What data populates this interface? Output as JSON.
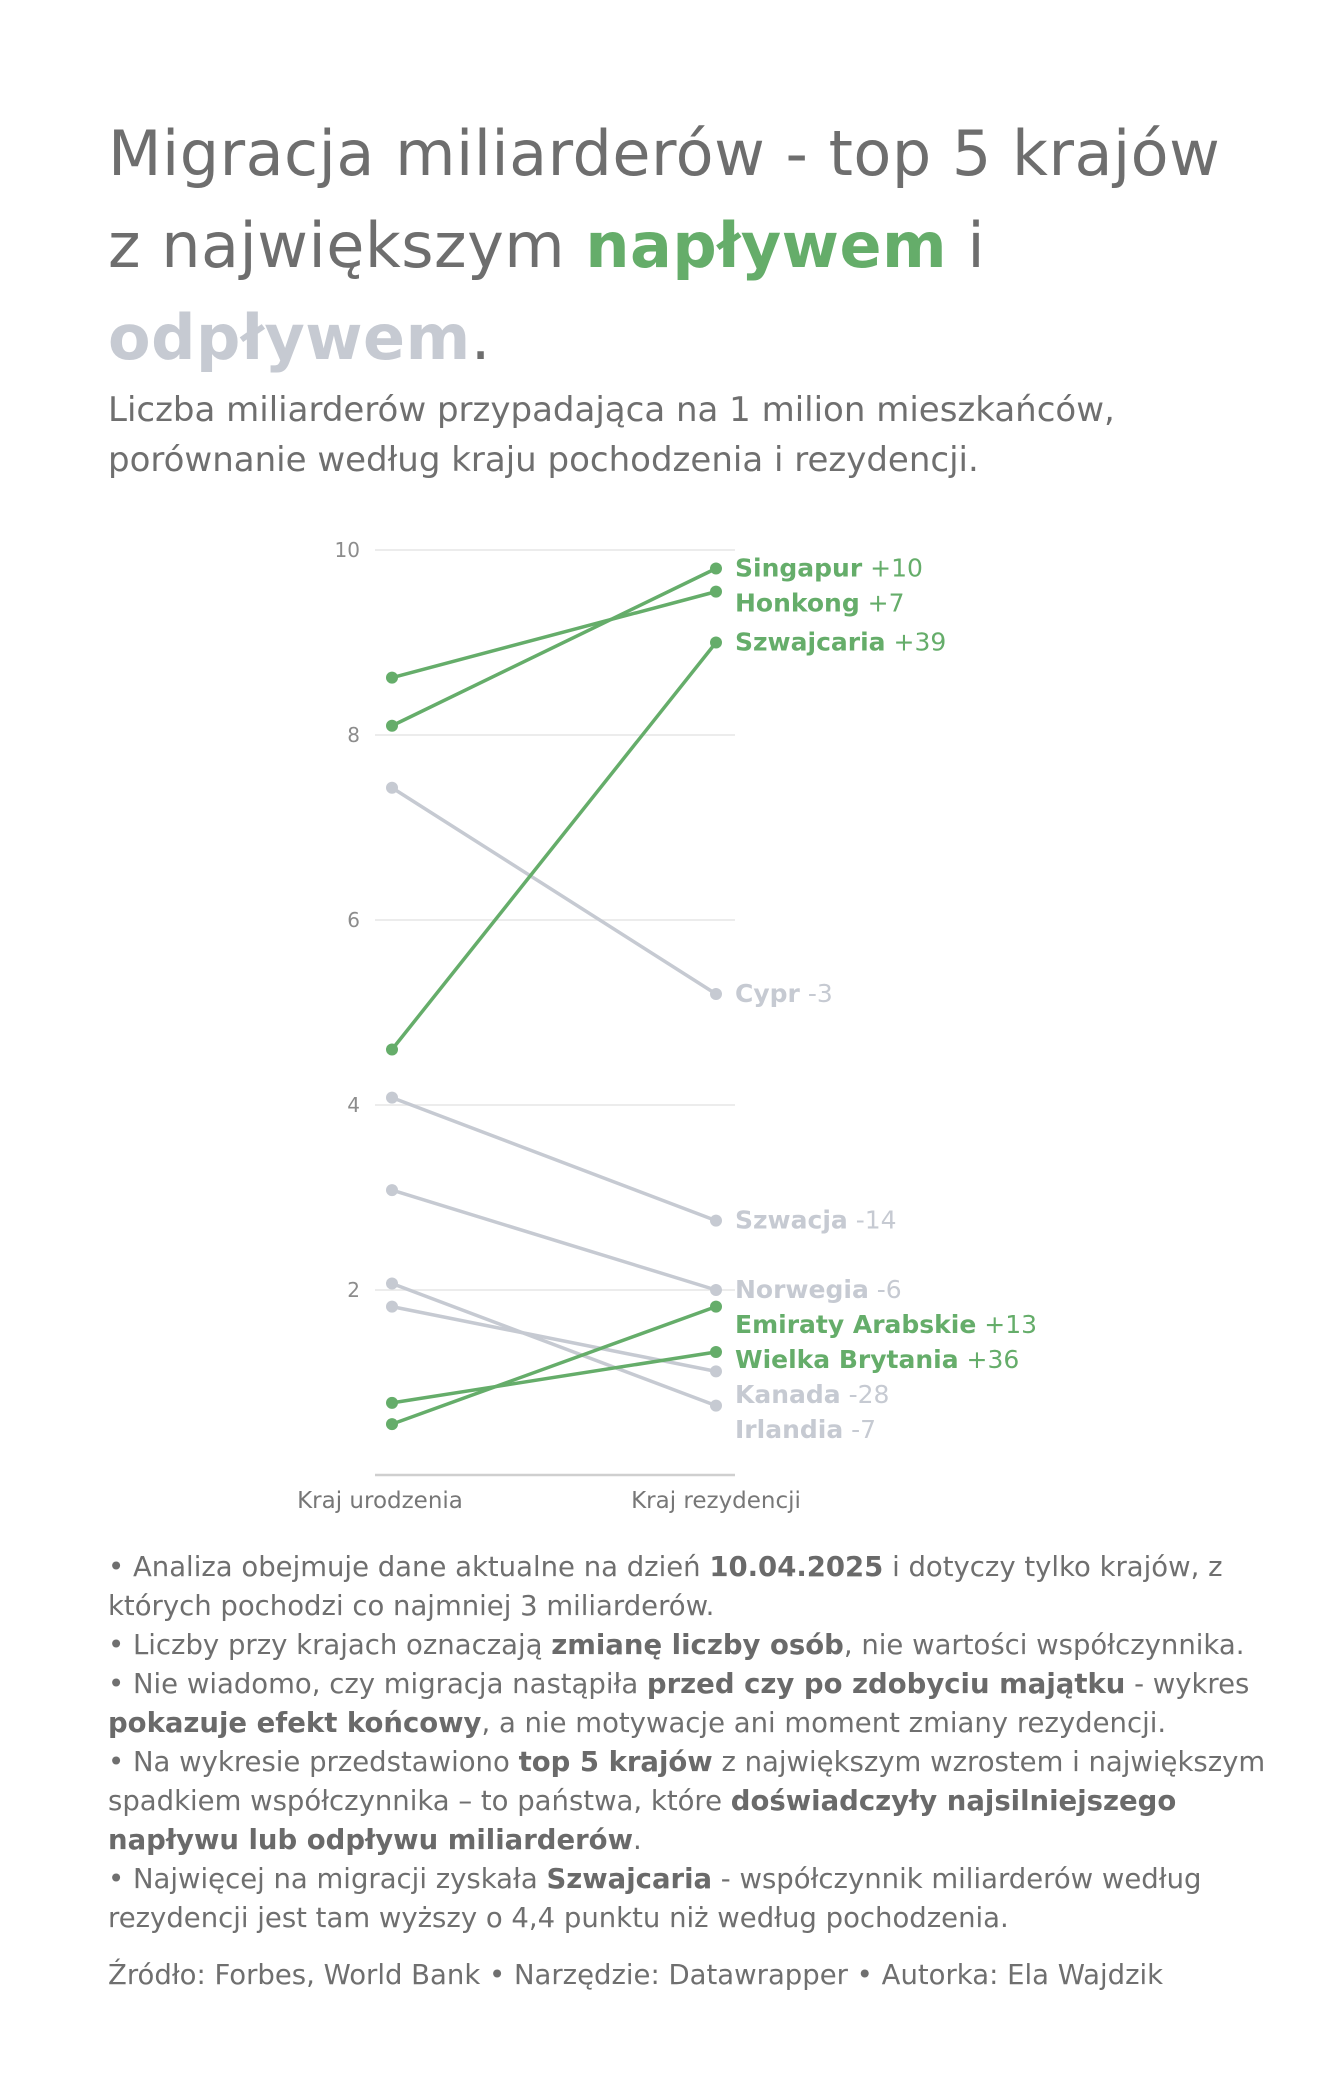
{
  "title": {
    "part1": "Migracja miliarderów - top 5 krajów z największym ",
    "highlight_in": "napływem",
    "part2": " i ",
    "highlight_out": "odpływem",
    "part3": "."
  },
  "subtitle": "Liczba miliarderów przypadająca na 1 milion mieszkańców, porównanie według kraju pochodzenia i rezydencji.",
  "colors": {
    "inflow": "#65ad6a",
    "outflow": "#c6cad2",
    "grid": "#e6e6e6",
    "axis": "#cfcfcf",
    "tick": "#8c8c8c"
  },
  "chart_data": {
    "type": "line",
    "subtype": "slope",
    "x": [
      "Kraj urodzenia",
      "Kraj rezydencji"
    ],
    "ylim": [
      0,
      10
    ],
    "yticks": [
      2,
      4,
      6,
      8,
      10
    ],
    "grid": true,
    "series": [
      {
        "name": "Singapur",
        "change": "+10",
        "group": "inflow",
        "values": [
          8.1,
          9.8
        ]
      },
      {
        "name": "Honkong",
        "change": "+7",
        "group": "inflow",
        "values": [
          8.62,
          9.55
        ]
      },
      {
        "name": "Szwajcaria",
        "change": "+39",
        "group": "inflow",
        "values": [
          4.6,
          9.0
        ]
      },
      {
        "name": "Emiraty Arabskie",
        "change": "+13",
        "group": "inflow",
        "values": [
          0.55,
          1.82
        ]
      },
      {
        "name": "Wielka Brytania",
        "change": "+36",
        "group": "inflow",
        "values": [
          0.78,
          1.33
        ]
      },
      {
        "name": "Cypr",
        "change": "-3",
        "group": "outflow",
        "values": [
          7.43,
          5.2
        ]
      },
      {
        "name": "Szwacja",
        "change": "-14",
        "group": "outflow",
        "values": [
          4.08,
          2.75
        ]
      },
      {
        "name": "Norwegia",
        "change": "-6",
        "group": "outflow",
        "values": [
          3.08,
          2.0
        ]
      },
      {
        "name": "Kanada",
        "change": "-28",
        "group": "outflow",
        "values": [
          1.82,
          1.12
        ]
      },
      {
        "name": "Irlandia",
        "change": "-7",
        "group": "outflow",
        "values": [
          2.07,
          0.75
        ]
      }
    ]
  },
  "notes": [
    [
      {
        "t": "• Analiza obejmuje dane aktualne na dzień "
      },
      {
        "t": "10.04.2025",
        "b": true
      },
      {
        "t": " i dotyczy tylko krajów, z których pochodzi co najmniej 3 miliarderów."
      }
    ],
    [
      {
        "t": "• Liczby przy krajach oznaczają "
      },
      {
        "t": "zmianę liczby osób",
        "b": true
      },
      {
        "t": ", nie wartości współczynnika."
      }
    ],
    [
      {
        "t": "• Nie wiadomo, czy migracja nastąpiła "
      },
      {
        "t": "przed czy po zdobyciu majątku",
        "b": true
      },
      {
        "t": " - wykres "
      },
      {
        "t": "pokazuje efekt końcowy",
        "b": true
      },
      {
        "t": ", a nie motywacje ani moment zmiany rezydencji."
      }
    ],
    [
      {
        "t": "• Na wykresie przedstawiono "
      },
      {
        "t": "top 5 krajów",
        "b": true
      },
      {
        "t": " z największym wzrostem i największym spadkiem współczynnika – to państwa, które "
      },
      {
        "t": "doświadczyły najsilniejszego napływu lub odpływu miliarderów",
        "b": true
      },
      {
        "t": "."
      }
    ],
    [
      {
        "t": "• Najwięcej na migracji zyskała "
      },
      {
        "t": "Szwajcaria",
        "b": true
      },
      {
        "t": " - współczynnik miliarderów według rezydencji jest tam wyższy o 4,4 punktu niż według pochodzenia."
      }
    ]
  ],
  "source": "Źródło: Forbes, World Bank • Narzędzie: Datawrapper • Autorka: Ela Wajdzik"
}
